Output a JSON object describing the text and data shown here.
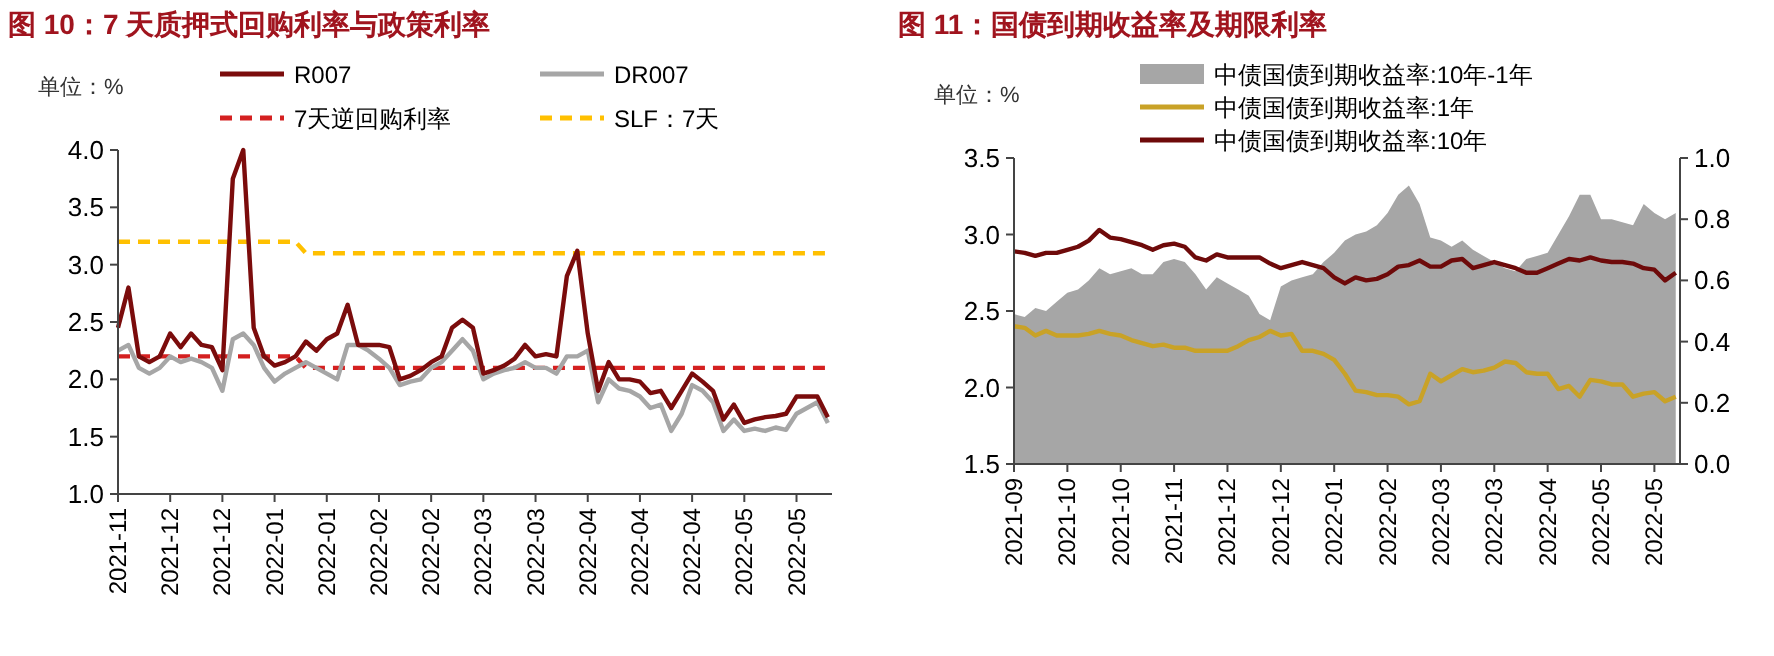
{
  "chart_data": [
    {
      "type": "line",
      "title": "图 10：7 天质押式回购利率与政策利率",
      "ylabel": "单位：%",
      "legend": "top",
      "grid": false,
      "categories": [
        "2021-11",
        null,
        null,
        null,
        null,
        "2021-12",
        null,
        null,
        null,
        null,
        "2021-12",
        null,
        null,
        null,
        null,
        "2022-01",
        null,
        null,
        null,
        null,
        "2022-01",
        null,
        null,
        null,
        null,
        "2022-02",
        null,
        null,
        null,
        null,
        "2022-02",
        null,
        null,
        null,
        null,
        "2022-03",
        null,
        null,
        null,
        null,
        "2022-03",
        null,
        null,
        null,
        null,
        "2022-04",
        null,
        null,
        null,
        null,
        "2022-04",
        null,
        null,
        null,
        null,
        "2022-04",
        null,
        null,
        null,
        null,
        "2022-05",
        null,
        null,
        null,
        null,
        "2022-05",
        null,
        null,
        null
      ],
      "ylim": [
        1,
        4
      ],
      "yticks": [
        {
          "value": 1,
          "label": "1.0"
        },
        {
          "value": 1.5,
          "label": "1.5"
        },
        {
          "value": 2,
          "label": "2.0"
        },
        {
          "value": 2.5,
          "label": "2.5"
        },
        {
          "value": 3,
          "label": "3.0"
        },
        {
          "value": 3.5,
          "label": "3.5"
        },
        {
          "value": 4,
          "label": "4.0"
        }
      ],
      "series": [
        {
          "name": "R007",
          "color": "#7b0c0c",
          "values": [
            2.45,
            2.8,
            2.2,
            2.15,
            2.2,
            2.4,
            2.28,
            2.4,
            2.3,
            2.28,
            2.08,
            3.75,
            4.0,
            2.45,
            2.2,
            2.12,
            2.15,
            2.2,
            2.33,
            2.25,
            2.35,
            2.4,
            2.65,
            2.3,
            2.3,
            2.3,
            2.28,
            2.0,
            2.03,
            2.08,
            2.15,
            2.2,
            2.45,
            2.52,
            2.45,
            2.05,
            2.08,
            2.12,
            2.18,
            2.3,
            2.2,
            2.22,
            2.2,
            2.9,
            3.12,
            2.4,
            1.9,
            2.15,
            2.0,
            2.0,
            1.98,
            1.88,
            1.9,
            1.75,
            1.9,
            2.05,
            1.98,
            1.9,
            1.65,
            1.78,
            1.62,
            1.65,
            1.67,
            1.68,
            1.7,
            1.85,
            1.85,
            1.85,
            1.67
          ]
        },
        {
          "name": "DR007",
          "color": "#a6a6a6",
          "values": [
            2.25,
            2.3,
            2.1,
            2.05,
            2.1,
            2.2,
            2.15,
            2.18,
            2.15,
            2.1,
            1.9,
            2.35,
            2.4,
            2.3,
            2.1,
            1.98,
            2.05,
            2.1,
            2.15,
            2.1,
            2.05,
            2.0,
            2.3,
            2.3,
            2.25,
            2.18,
            2.1,
            1.95,
            1.98,
            2.0,
            2.1,
            2.15,
            2.25,
            2.35,
            2.25,
            2.0,
            2.05,
            2.08,
            2.1,
            2.15,
            2.1,
            2.1,
            2.05,
            2.2,
            2.2,
            2.25,
            1.8,
            2.0,
            1.92,
            1.9,
            1.85,
            1.75,
            1.78,
            1.55,
            1.7,
            1.95,
            1.9,
            1.8,
            1.55,
            1.65,
            1.55,
            1.57,
            1.55,
            1.58,
            1.56,
            1.7,
            1.75,
            1.8,
            1.62
          ]
        },
        {
          "name": "7天逆回购利率",
          "color": "#d42020",
          "line_style": "dashed",
          "values": [
            2.2,
            2.2,
            2.2,
            2.2,
            2.2,
            2.2,
            2.2,
            2.2,
            2.2,
            2.2,
            2.2,
            2.2,
            2.2,
            2.2,
            2.2,
            2.2,
            2.2,
            2.2,
            2.1,
            2.1,
            2.1,
            2.1,
            2.1,
            2.1,
            2.1,
            2.1,
            2.1,
            2.1,
            2.1,
            2.1,
            2.1,
            2.1,
            2.1,
            2.1,
            2.1,
            2.1,
            2.1,
            2.1,
            2.1,
            2.1,
            2.1,
            2.1,
            2.1,
            2.1,
            2.1,
            2.1,
            2.1,
            2.1,
            2.1,
            2.1,
            2.1,
            2.1,
            2.1,
            2.1,
            2.1,
            2.1,
            2.1,
            2.1,
            2.1,
            2.1,
            2.1,
            2.1,
            2.1,
            2.1,
            2.1,
            2.1,
            2.1,
            2.1,
            2.1
          ]
        },
        {
          "name": "SLF：7天",
          "color": "#ffc000",
          "line_style": "dashed",
          "values": [
            3.2,
            3.2,
            3.2,
            3.2,
            3.2,
            3.2,
            3.2,
            3.2,
            3.2,
            3.2,
            3.2,
            3.2,
            3.2,
            3.2,
            3.2,
            3.2,
            3.2,
            3.2,
            3.1,
            3.1,
            3.1,
            3.1,
            3.1,
            3.1,
            3.1,
            3.1,
            3.1,
            3.1,
            3.1,
            3.1,
            3.1,
            3.1,
            3.1,
            3.1,
            3.1,
            3.1,
            3.1,
            3.1,
            3.1,
            3.1,
            3.1,
            3.1,
            3.1,
            3.1,
            3.1,
            3.1,
            3.1,
            3.1,
            3.1,
            3.1,
            3.1,
            3.1,
            3.1,
            3.1,
            3.1,
            3.1,
            3.1,
            3.1,
            3.1,
            3.1,
            3.1,
            3.1,
            3.1,
            3.1,
            3.1,
            3.1,
            3.1,
            3.1,
            3.1
          ]
        }
      ]
    },
    {
      "type": "line",
      "title": "图 11：国债到期收益率及期限利率",
      "ylabel": "单位：%",
      "legend": "top",
      "grid": false,
      "categories": [
        "2021-09",
        null,
        null,
        null,
        null,
        "2021-10",
        null,
        null,
        null,
        null,
        "2021-10",
        null,
        null,
        null,
        null,
        "2021-11",
        null,
        null,
        null,
        null,
        "2021-12",
        null,
        null,
        null,
        null,
        "2021-12",
        null,
        null,
        null,
        null,
        "2022-01",
        null,
        null,
        null,
        null,
        "2022-02",
        null,
        null,
        null,
        null,
        "2022-03",
        null,
        null,
        null,
        null,
        "2022-03",
        null,
        null,
        null,
        null,
        "2022-04",
        null,
        null,
        null,
        null,
        "2022-05",
        null,
        null,
        null,
        null,
        "2022-05",
        null,
        null
      ],
      "ylim": [
        1.5,
        3.5
      ],
      "yticks": [
        {
          "value": 1.5,
          "label": "1.5"
        },
        {
          "value": 2,
          "label": "2.0"
        },
        {
          "value": 2.5,
          "label": "2.5"
        },
        {
          "value": 3,
          "label": "3.0"
        },
        {
          "value": 3.5,
          "label": "3.5"
        }
      ],
      "y2lim": [
        0,
        1
      ],
      "y2ticks": [
        {
          "value": 0,
          "label": "0.0"
        },
        {
          "value": 0.2,
          "label": "0.2"
        },
        {
          "value": 0.4,
          "label": "0.4"
        },
        {
          "value": 0.6,
          "label": "0.6"
        },
        {
          "value": 0.8,
          "label": "0.8"
        },
        {
          "value": 1,
          "label": "1.0"
        }
      ],
      "series": [
        {
          "name": "中债国债到期收益率:10年-1年",
          "type": "area",
          "axis": "y2",
          "color": "#a6a6a6",
          "values": [
            0.49,
            0.48,
            0.51,
            0.5,
            0.53,
            0.56,
            0.57,
            0.6,
            0.64,
            0.62,
            0.63,
            0.64,
            0.62,
            0.62,
            0.66,
            0.67,
            0.66,
            0.62,
            0.57,
            0.61,
            0.59,
            0.57,
            0.55,
            0.49,
            0.47,
            0.58,
            0.6,
            0.61,
            0.62,
            0.66,
            0.69,
            0.73,
            0.75,
            0.76,
            0.78,
            0.82,
            0.88,
            0.91,
            0.85,
            0.74,
            0.73,
            0.71,
            0.73,
            0.7,
            0.68,
            0.66,
            0.64,
            0.63,
            0.67,
            0.68,
            0.69,
            0.75,
            0.81,
            0.88,
            0.88,
            0.8,
            0.8,
            0.79,
            0.78,
            0.85,
            0.82,
            0.8,
            0.82
          ]
        },
        {
          "name": "中债国债到期收益率:1年",
          "color": "#c9a227",
          "values": [
            2.4,
            2.39,
            2.34,
            2.37,
            2.34,
            2.34,
            2.34,
            2.35,
            2.37,
            2.35,
            2.34,
            2.31,
            2.29,
            2.27,
            2.28,
            2.26,
            2.26,
            2.24,
            2.24,
            2.24,
            2.24,
            2.27,
            2.31,
            2.33,
            2.37,
            2.34,
            2.35,
            2.24,
            2.24,
            2.22,
            2.18,
            2.09,
            1.98,
            1.97,
            1.95,
            1.95,
            1.94,
            1.89,
            1.91,
            2.09,
            2.04,
            2.08,
            2.12,
            2.1,
            2.11,
            2.13,
            2.17,
            2.16,
            2.1,
            2.09,
            2.09,
            1.99,
            2.01,
            1.94,
            2.05,
            2.04,
            2.02,
            2.02,
            1.94,
            1.96,
            1.97,
            1.91,
            1.94
          ]
        },
        {
          "name": "中债国债到期收益率:10年",
          "color": "#6e0a0a",
          "values": [
            2.89,
            2.88,
            2.86,
            2.88,
            2.88,
            2.9,
            2.92,
            2.96,
            3.03,
            2.98,
            2.97,
            2.95,
            2.93,
            2.9,
            2.93,
            2.94,
            2.92,
            2.85,
            2.83,
            2.87,
            2.85,
            2.85,
            2.85,
            2.85,
            2.81,
            2.78,
            2.8,
            2.82,
            2.8,
            2.78,
            2.72,
            2.68,
            2.72,
            2.7,
            2.71,
            2.74,
            2.79,
            2.8,
            2.83,
            2.79,
            2.79,
            2.83,
            2.84,
            2.78,
            2.8,
            2.82,
            2.8,
            2.78,
            2.75,
            2.75,
            2.78,
            2.81,
            2.84,
            2.83,
            2.85,
            2.83,
            2.82,
            2.82,
            2.81,
            2.78,
            2.77,
            2.7,
            2.75
          ]
        }
      ]
    }
  ]
}
